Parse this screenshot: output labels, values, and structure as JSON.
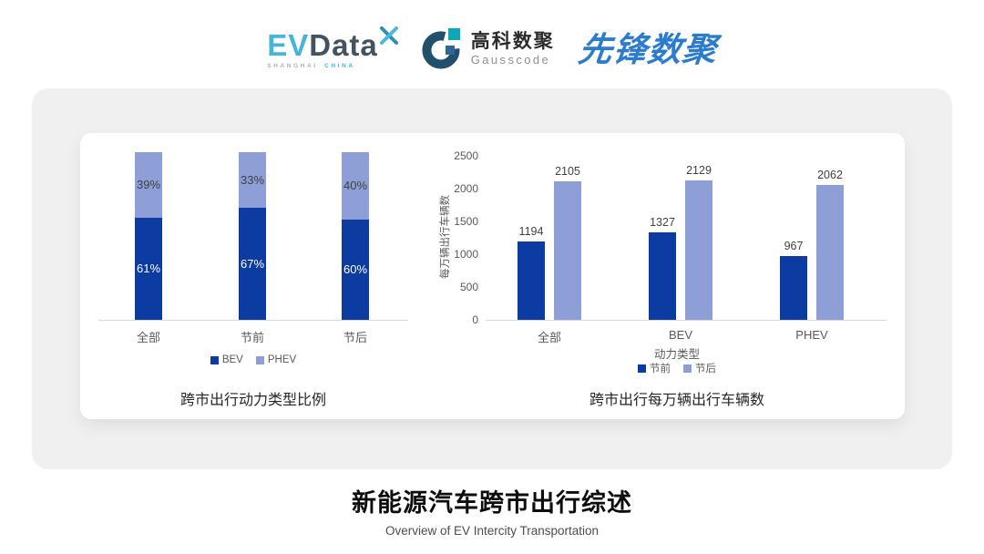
{
  "header": {
    "evdata": {
      "ev": "EV",
      "data": "Data",
      "tagline_left": "SHANGHAI",
      "tagline_right": "CHINA"
    },
    "gausscode": {
      "name_cn": "高科数聚",
      "name_en": "Gausscode"
    },
    "pioneer": {
      "name": "先锋数聚"
    }
  },
  "colors": {
    "series_dark_blue": "#0c3ba2",
    "series_light_blue": "#8e9ed6",
    "card_gray": "#f0f0f1",
    "axis_line": "#d9d9d9",
    "evdata_cyan": "#45b6da",
    "evdata_slate": "#45525f",
    "gauss_navy": "#20506b",
    "gauss_teal": "#0aa9ba",
    "pioneer_blue": "#2b7ccc"
  },
  "chart_data": [
    {
      "type": "bar",
      "subtype": "stacked_percent",
      "title": "跨市出行动力类型比例",
      "categories": [
        "全部",
        "节前",
        "节后"
      ],
      "series": [
        {
          "name": "BEV",
          "color": "#0c3ba2",
          "label_color": "#ffffff",
          "values": [
            61,
            67,
            60
          ]
        },
        {
          "name": "PHEV",
          "color": "#8e9ed6",
          "label_color": "#3f3f3f",
          "values": [
            39,
            33,
            40
          ]
        }
      ],
      "value_suffix": "%",
      "ylim": [
        0,
        100
      ],
      "legend": [
        "BEV",
        "PHEV"
      ],
      "legend_position": "bottom",
      "grid": false
    },
    {
      "type": "bar",
      "subtype": "grouped",
      "title": "跨市出行每万辆出行车辆数",
      "xlabel": "动力类型",
      "ylabel": "每万辆出行车辆数",
      "categories": [
        "全部",
        "BEV",
        "PHEV"
      ],
      "series": [
        {
          "name": "节前",
          "color": "#0c3ba2",
          "values": [
            1194,
            1327,
            967
          ]
        },
        {
          "name": "节后",
          "color": "#8e9ed6",
          "values": [
            2105,
            2129,
            2062
          ]
        }
      ],
      "yticks": [
        0,
        500,
        1000,
        1500,
        2000,
        2500
      ],
      "ylim": [
        0,
        2500
      ],
      "legend": [
        "节前",
        "节后"
      ],
      "legend_position": "bottom",
      "grid": false
    }
  ],
  "page": {
    "footer_title": "新能源汽车跨市出行综述",
    "footer_subtitle": "Overview of EV Intercity Transportation"
  }
}
